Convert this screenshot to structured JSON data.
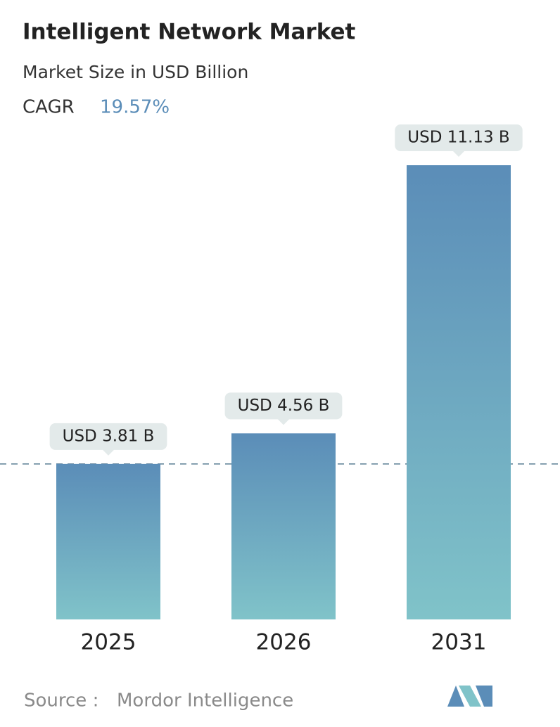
{
  "chart_data": {
    "type": "bar",
    "title": "Intelligent Network Market",
    "subtitle": "Market Size in USD Billion",
    "cagr_label": "CAGR",
    "cagr_value": "19.57%",
    "categories": [
      "2025",
      "2026",
      "2031"
    ],
    "values": [
      3.81,
      4.56,
      11.13
    ],
    "value_labels": [
      "USD 3.81 B",
      "USD 4.56 B",
      "USD 11.13 B"
    ],
    "colors": [
      "#5b8db8",
      "#80c3c9"
    ],
    "source_label": "Source :",
    "source": "Mordor Intelligence"
  }
}
